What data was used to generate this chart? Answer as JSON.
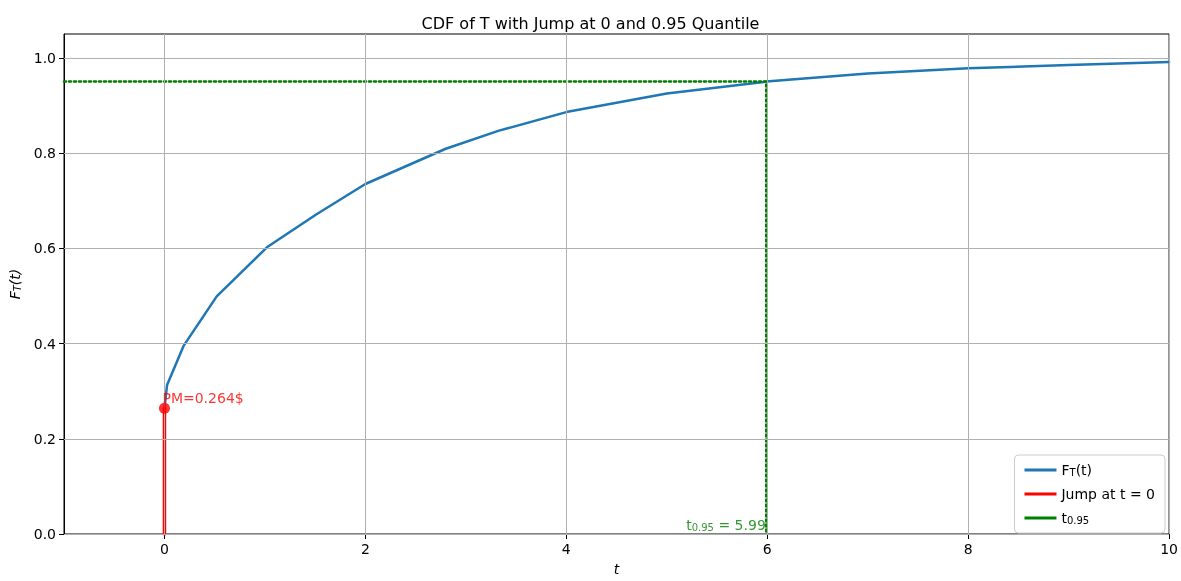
{
  "chart_data": {
    "type": "line",
    "title": "CDF of T with Jump at 0 and 0.95 Quantile",
    "xlabel": "t",
    "ylabel": "F$_{T}$(t)",
    "xlim": [
      -1,
      10
    ],
    "xticks": [
      0,
      2,
      4,
      6,
      8,
      10
    ],
    "ylim": [
      0,
      1.05
    ],
    "yticks": [
      {
        "value": 0,
        "label": "0.0"
      },
      0.2,
      0.4,
      0.6,
      0.8,
      {
        "value": 1,
        "label": "1.0"
      }
    ],
    "grid": true,
    "legend": "bottom right",
    "marker": "none",
    "series": [
      {
        "name": "F$_{T}$(t)",
        "color": "#1f77b4",
        "x": [
          0,
          0.026,
          0.19,
          0.52,
          1.02,
          1.51,
          2,
          2.8,
          3.33,
          4,
          5,
          5.99,
          7,
          8,
          9,
          10
        ],
        "values": [
          0.264,
          0.313,
          0.395,
          0.499,
          0.602,
          0.671,
          0.735,
          0.809,
          0.847,
          0.886,
          0.925,
          0.95,
          0.967,
          0.978,
          0.985,
          0.991
        ]
      },
      {
        "name": "Jump at t = 0",
        "color": "#ff0000",
        "x": [
          0,
          0
        ],
        "values": [
          0,
          0.264
        ]
      },
      {
        "name": "t$_{0.95}$",
        "color": "#008000",
        "line_style": "dotted",
        "x": [
          -1,
          5.99,
          5.99
        ],
        "values": [
          0.95,
          0.95,
          0
        ]
      },
      {
        "type": "scatter",
        "marker": "circle",
        "color": "#ff0000",
        "x": [
          0
        ],
        "values": [
          0.264
        ]
      }
    ],
    "annotations": [
      {
        "text": "PM=0.264$",
        "x": 0,
        "y": 0.264
      },
      {
        "text": "t$_{0.95}$ = 5.99",
        "x": 5.99,
        "y": 0
      }
    ]
  }
}
